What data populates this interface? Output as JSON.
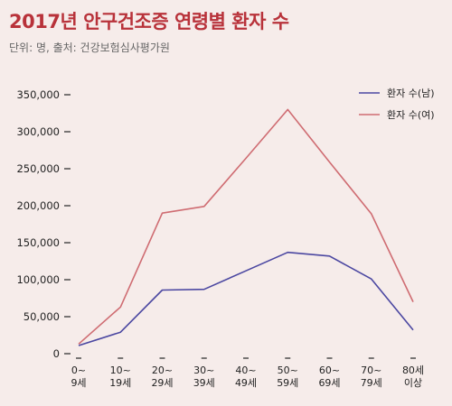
{
  "header": {
    "title": "2017년 안구건조증 연령별 환자 수",
    "subtitle": "단위: 명, 출처: 건강보험심사평가원"
  },
  "colors": {
    "title": "#b8323a",
    "male_line": "#4b47a1",
    "female_line": "#cf6c72",
    "background": "#f6ecea"
  },
  "chart_data": {
    "type": "line",
    "title": "2017년 안구건조증 연령별 환자 수",
    "subtitle": "단위: 명, 출처: 건강보험심사평가원",
    "xlabel": "",
    "ylabel": "",
    "categories": [
      [
        "0~",
        "9세"
      ],
      [
        "10~",
        "19세"
      ],
      [
        "20~",
        "29세"
      ],
      [
        "30~",
        "39세"
      ],
      [
        "40~",
        "49세"
      ],
      [
        "50~",
        "59세"
      ],
      [
        "60~",
        "69세"
      ],
      [
        "70~",
        "79세"
      ],
      [
        "80세",
        "이상"
      ]
    ],
    "yticks": [
      "0",
      "50,000",
      "100,000",
      "150,000",
      "200,000",
      "250,000",
      "300,000",
      "350,000"
    ],
    "ylim": [
      0,
      350000
    ],
    "grid": false,
    "legend": "top-right",
    "series": [
      {
        "name": "환자 수(남)",
        "color": "#4b47a1",
        "values": [
          11000,
          29000,
          86000,
          87000,
          112000,
          137000,
          132000,
          101000,
          32000
        ]
      },
      {
        "name": "환자 수(여)",
        "color": "#cf6c72",
        "values": [
          13000,
          63000,
          190000,
          199000,
          264000,
          330000,
          259000,
          189000,
          70000
        ]
      }
    ]
  }
}
